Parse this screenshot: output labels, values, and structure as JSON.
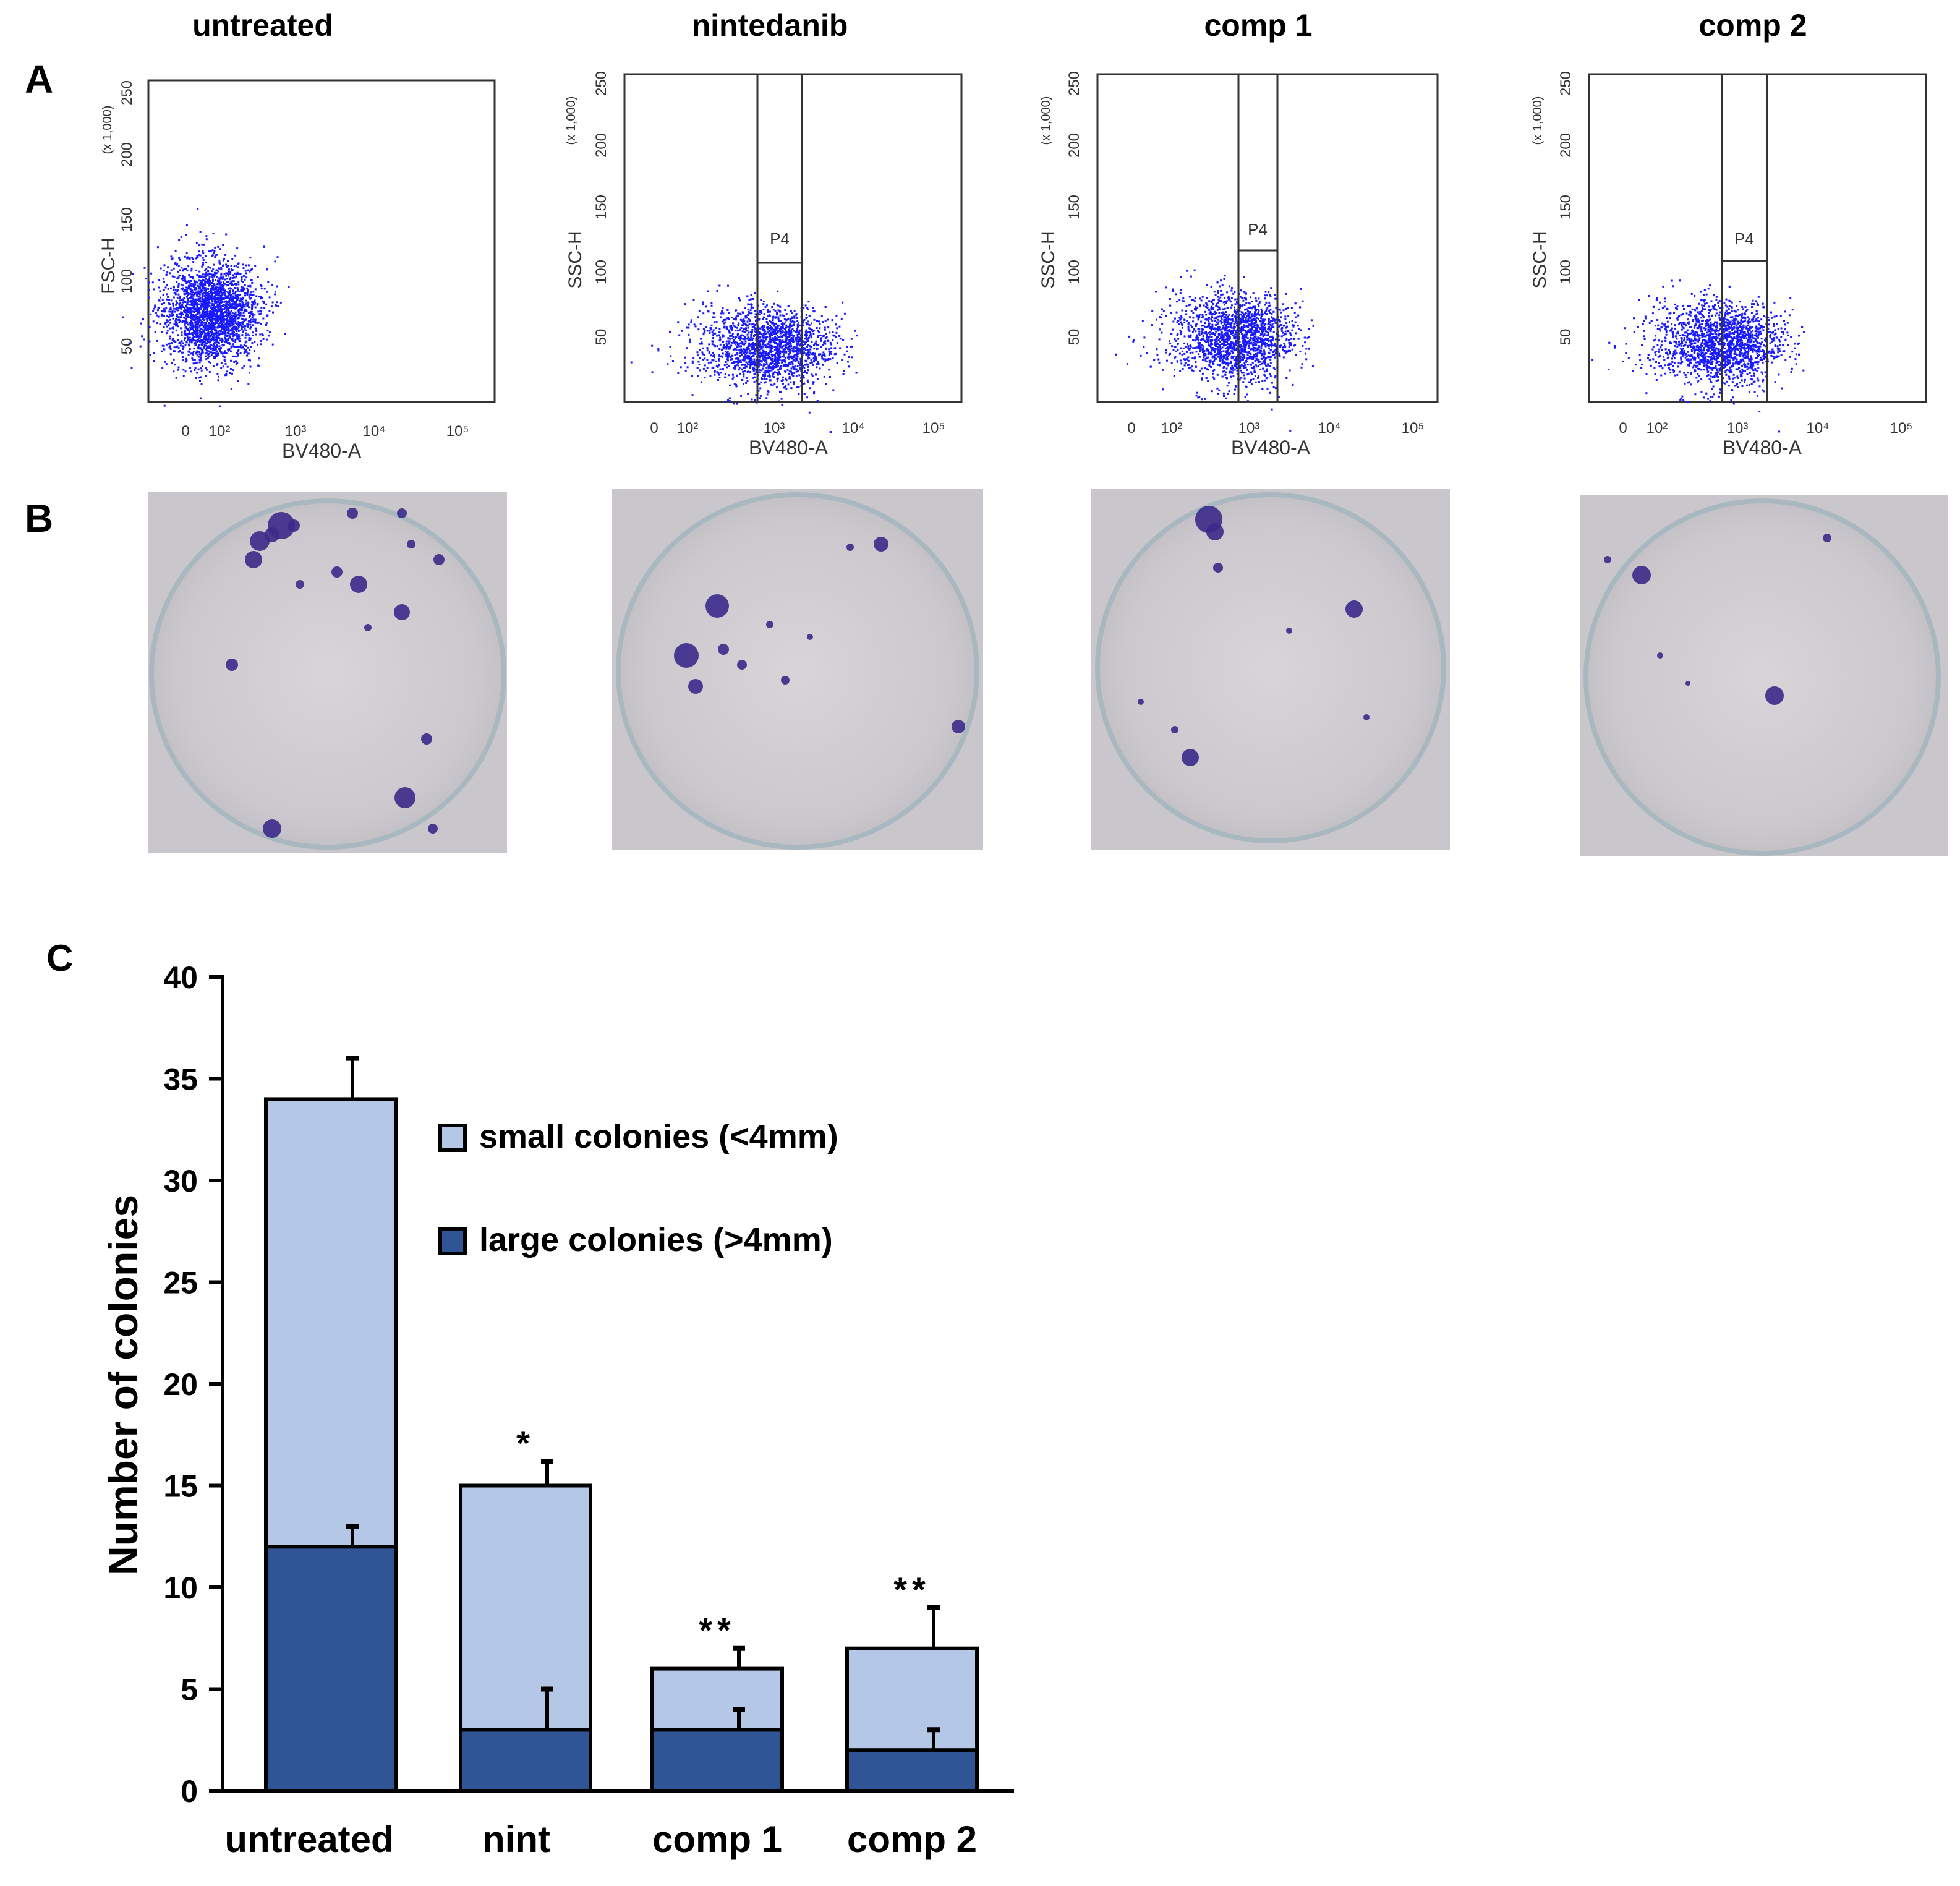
{
  "panel_labels": {
    "a": "A",
    "b": "B",
    "c": "C"
  },
  "conditions": [
    {
      "title": "untreated",
      "y_axis_label": "FSC-H",
      "gate_label": ""
    },
    {
      "title": "nintedanib",
      "y_axis_label": "SSC-H",
      "gate_label": "P4"
    },
    {
      "title": "comp 1",
      "y_axis_label": "SSC-H",
      "gate_label": "P4"
    },
    {
      "title": "comp 2",
      "y_axis_label": "SSC-H",
      "gate_label": "P4"
    }
  ],
  "flow_axes": {
    "x_label": "BV480-A",
    "x_ticks": [
      "0",
      "10²",
      "10³",
      "10⁴",
      "10⁵"
    ],
    "y_ticks": [
      "50",
      "100",
      "150",
      "200",
      "250"
    ],
    "y_scale_note": "(x 1,000)"
  },
  "chart_data": {
    "type": "bar",
    "stacked": true,
    "title": "",
    "xlabel": "",
    "ylabel": "Number of colonies",
    "ylim": [
      0,
      40
    ],
    "yticks": [
      0,
      5,
      10,
      15,
      20,
      25,
      30,
      35,
      40
    ],
    "categories": [
      "untreated",
      "nint",
      "comp 1",
      "comp 2"
    ],
    "series": [
      {
        "name": "large colonies (>4mm)",
        "color": "#2f5597",
        "values": [
          12,
          3,
          3,
          2
        ],
        "errors": [
          1,
          2,
          1,
          1
        ]
      },
      {
        "name": "small colonies (<4mm)",
        "color": "#b4c7e7",
        "values": [
          22,
          12,
          3,
          5
        ],
        "errors": [
          2,
          1.2,
          1,
          2
        ]
      }
    ],
    "significance": [
      "",
      "*",
      "**",
      "**"
    ],
    "legend_position": "top-right"
  },
  "colors": {
    "scatter": "#1a1aff",
    "stain": "#3b2a8a",
    "dish_bg": "#cfcdd0"
  }
}
